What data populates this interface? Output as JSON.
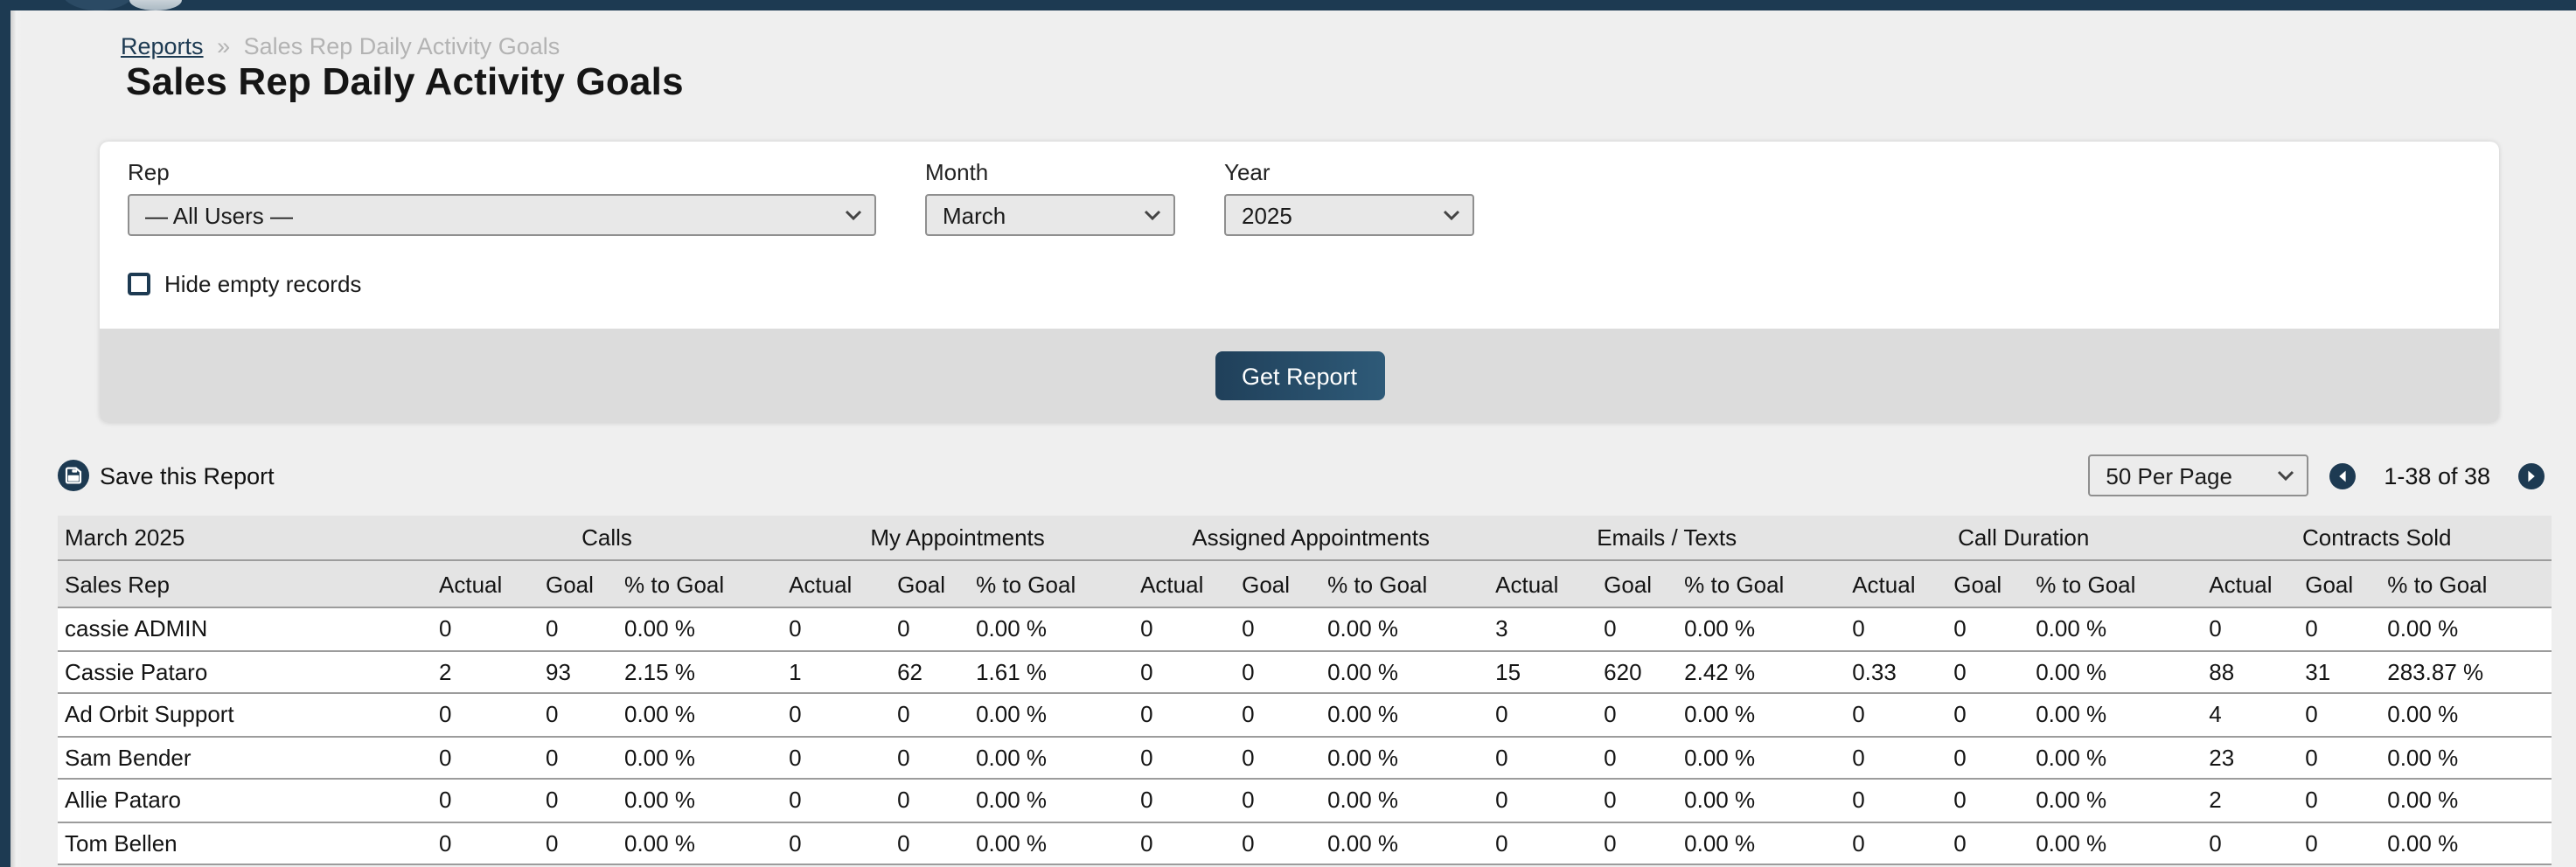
{
  "breadcrumb": {
    "link": "Reports",
    "separator": "»",
    "current": "Sales Rep Daily Activity Goals"
  },
  "page": {
    "title": "Sales Rep Daily Activity Goals"
  },
  "filters": {
    "rep_label": "Rep",
    "rep_value": "— All Users —",
    "month_label": "Month",
    "month_value": "March",
    "year_label": "Year",
    "year_value": "2025",
    "hide_empty_label": "Hide empty records",
    "hide_empty_checked": false,
    "submit_label": "Get Report"
  },
  "toolbar": {
    "save_label": "Save this Report",
    "per_page_value": "50 Per Page",
    "range_label": "1-38 of 38"
  },
  "table": {
    "period_label": "March 2025",
    "name_header": "Sales Rep",
    "groups": [
      "Calls",
      "My Appointments",
      "Assigned Appointments",
      "Emails / Texts",
      "Call Duration",
      "Contracts Sold"
    ],
    "sub_headers": [
      "Actual",
      "Goal",
      "% to Goal"
    ],
    "rows": [
      {
        "name": "cassie ADMIN",
        "values": [
          "0",
          "0",
          "0.00 %",
          "0",
          "0",
          "0.00 %",
          "0",
          "0",
          "0.00 %",
          "3",
          "0",
          "0.00 %",
          "0",
          "0",
          "0.00 %",
          "0",
          "0",
          "0.00 %"
        ]
      },
      {
        "name": "Cassie Pataro",
        "values": [
          "2",
          "93",
          "2.15 %",
          "1",
          "62",
          "1.61 %",
          "0",
          "0",
          "0.00 %",
          "15",
          "620",
          "2.42 %",
          "0.33",
          "0",
          "0.00 %",
          "88",
          "31",
          "283.87 %"
        ]
      },
      {
        "name": "Ad Orbit Support",
        "values": [
          "0",
          "0",
          "0.00 %",
          "0",
          "0",
          "0.00 %",
          "0",
          "0",
          "0.00 %",
          "0",
          "0",
          "0.00 %",
          "0",
          "0",
          "0.00 %",
          "4",
          "0",
          "0.00 %"
        ]
      },
      {
        "name": "Sam Bender",
        "values": [
          "0",
          "0",
          "0.00 %",
          "0",
          "0",
          "0.00 %",
          "0",
          "0",
          "0.00 %",
          "0",
          "0",
          "0.00 %",
          "0",
          "0",
          "0.00 %",
          "23",
          "0",
          "0.00 %"
        ]
      },
      {
        "name": "Allie Pataro",
        "values": [
          "0",
          "0",
          "0.00 %",
          "0",
          "0",
          "0.00 %",
          "0",
          "0",
          "0.00 %",
          "0",
          "0",
          "0.00 %",
          "0",
          "0",
          "0.00 %",
          "2",
          "0",
          "0.00 %"
        ]
      },
      {
        "name": "Tom Bellen",
        "values": [
          "0",
          "0",
          "0.00 %",
          "0",
          "0",
          "0.00 %",
          "0",
          "0",
          "0.00 %",
          "0",
          "0",
          "0.00 %",
          "0",
          "0",
          "0.00 %",
          "0",
          "0",
          "0.00 %"
        ]
      }
    ]
  },
  "icons": {
    "save": "floppy-disk-icon",
    "prev": "arrow-left-circle-icon",
    "next": "arrow-right-circle-icon",
    "select_chevron": "chevron-down-icon"
  },
  "colors": {
    "navy": "#1d3a52",
    "page_bg": "#efefef",
    "table_header_bg": "#e4e4e4",
    "card_footer_bg": "#dcdcdc",
    "row_border": "#9c9c9c",
    "button_gradient_start": "#20405a",
    "button_gradient_end": "#2e5a78",
    "breadcrumb_gray": "#b3b3b3"
  }
}
